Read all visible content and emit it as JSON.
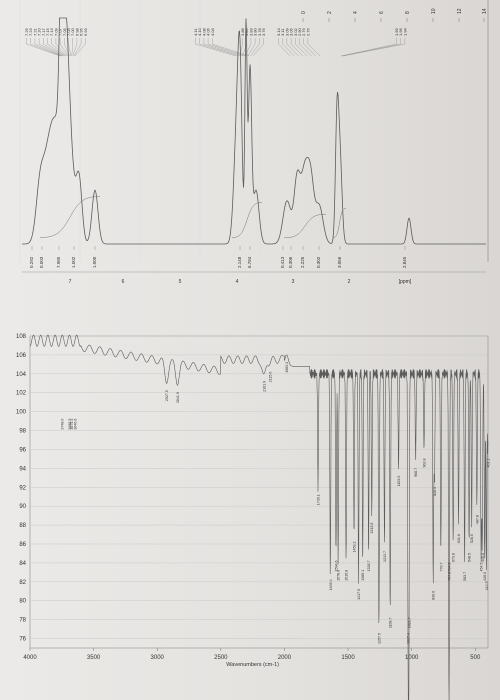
{
  "nmr": {
    "ppm_label": "[ppm]",
    "axis_ticks": [
      "14",
      "12",
      "10",
      "8",
      "6",
      "4",
      "2",
      "0"
    ],
    "lower_ticks": [
      "7",
      "6",
      "5",
      "4",
      "3",
      "2"
    ],
    "peak_group_labels": [
      [
        "7.26",
        "7.23",
        "7.21",
        "7.20",
        "7.17",
        "7.15",
        "7.13",
        "7.09",
        "7.07",
        "7.05",
        "7.03",
        "7.00",
        "6.98",
        "6.95",
        "6.93"
      ],
      [
        "4.11",
        "4.10",
        "4.08",
        "4.06",
        "4.04"
      ],
      [
        "3.88",
        "3.85",
        "3.83",
        "3.80",
        "3.78",
        "3.76"
      ],
      [
        "3.14",
        "3.11",
        "3.09",
        "3.06",
        "3.02",
        "2.90",
        "2.79",
        "2.76"
      ],
      [
        "1.99",
        "1.96",
        "1.94"
      ]
    ],
    "integrals": [
      "0.292",
      "0.503",
      "7.985",
      "1.502",
      "1.000",
      "2.148",
      "6.784",
      "0.413",
      "0.306",
      "2.225",
      "0.302",
      "3.056",
      "2.845"
    ]
  },
  "ir": {
    "xlabel": "Wavenumbers (cm-1)",
    "x_ticks": [
      "4000",
      "3500",
      "3000",
      "2500",
      "2000",
      "1500",
      "1000",
      "500"
    ],
    "y_ticks": [
      "108",
      "106",
      "104",
      "102",
      "100",
      "98",
      "96",
      "94",
      "92",
      "90",
      "88",
      "86",
      "84",
      "82",
      "80",
      "78",
      "76"
    ],
    "peaks": [
      "3688.5",
      "3748.0",
      "3646.6",
      "3675.4",
      "2927.5",
      "2841.9",
      "2161.9",
      "2115.0",
      "1983.3",
      "1736.1",
      "1639.4",
      "1594.6",
      "1578.0",
      "1515.8",
      "1453.2",
      "1417.5",
      "1385.1",
      "1338.7",
      "1313.8",
      "1257.5",
      "1213.7",
      "1168.7",
      "1103.0",
      "1027.4",
      "1021.7",
      "968.7",
      "902.8",
      "830.6",
      "820.5",
      "770.7",
      "707.8",
      "704.6",
      "673.8",
      "631.6",
      "583.7",
      "548.5",
      "528.5",
      "487.8",
      "454.5",
      "445.0",
      "426.0",
      "412.5",
      "401.1"
    ]
  },
  "colors": {
    "trace": "#5c5c5c",
    "grid": "#c9c9c9",
    "frame": "#9a9a9a"
  }
}
